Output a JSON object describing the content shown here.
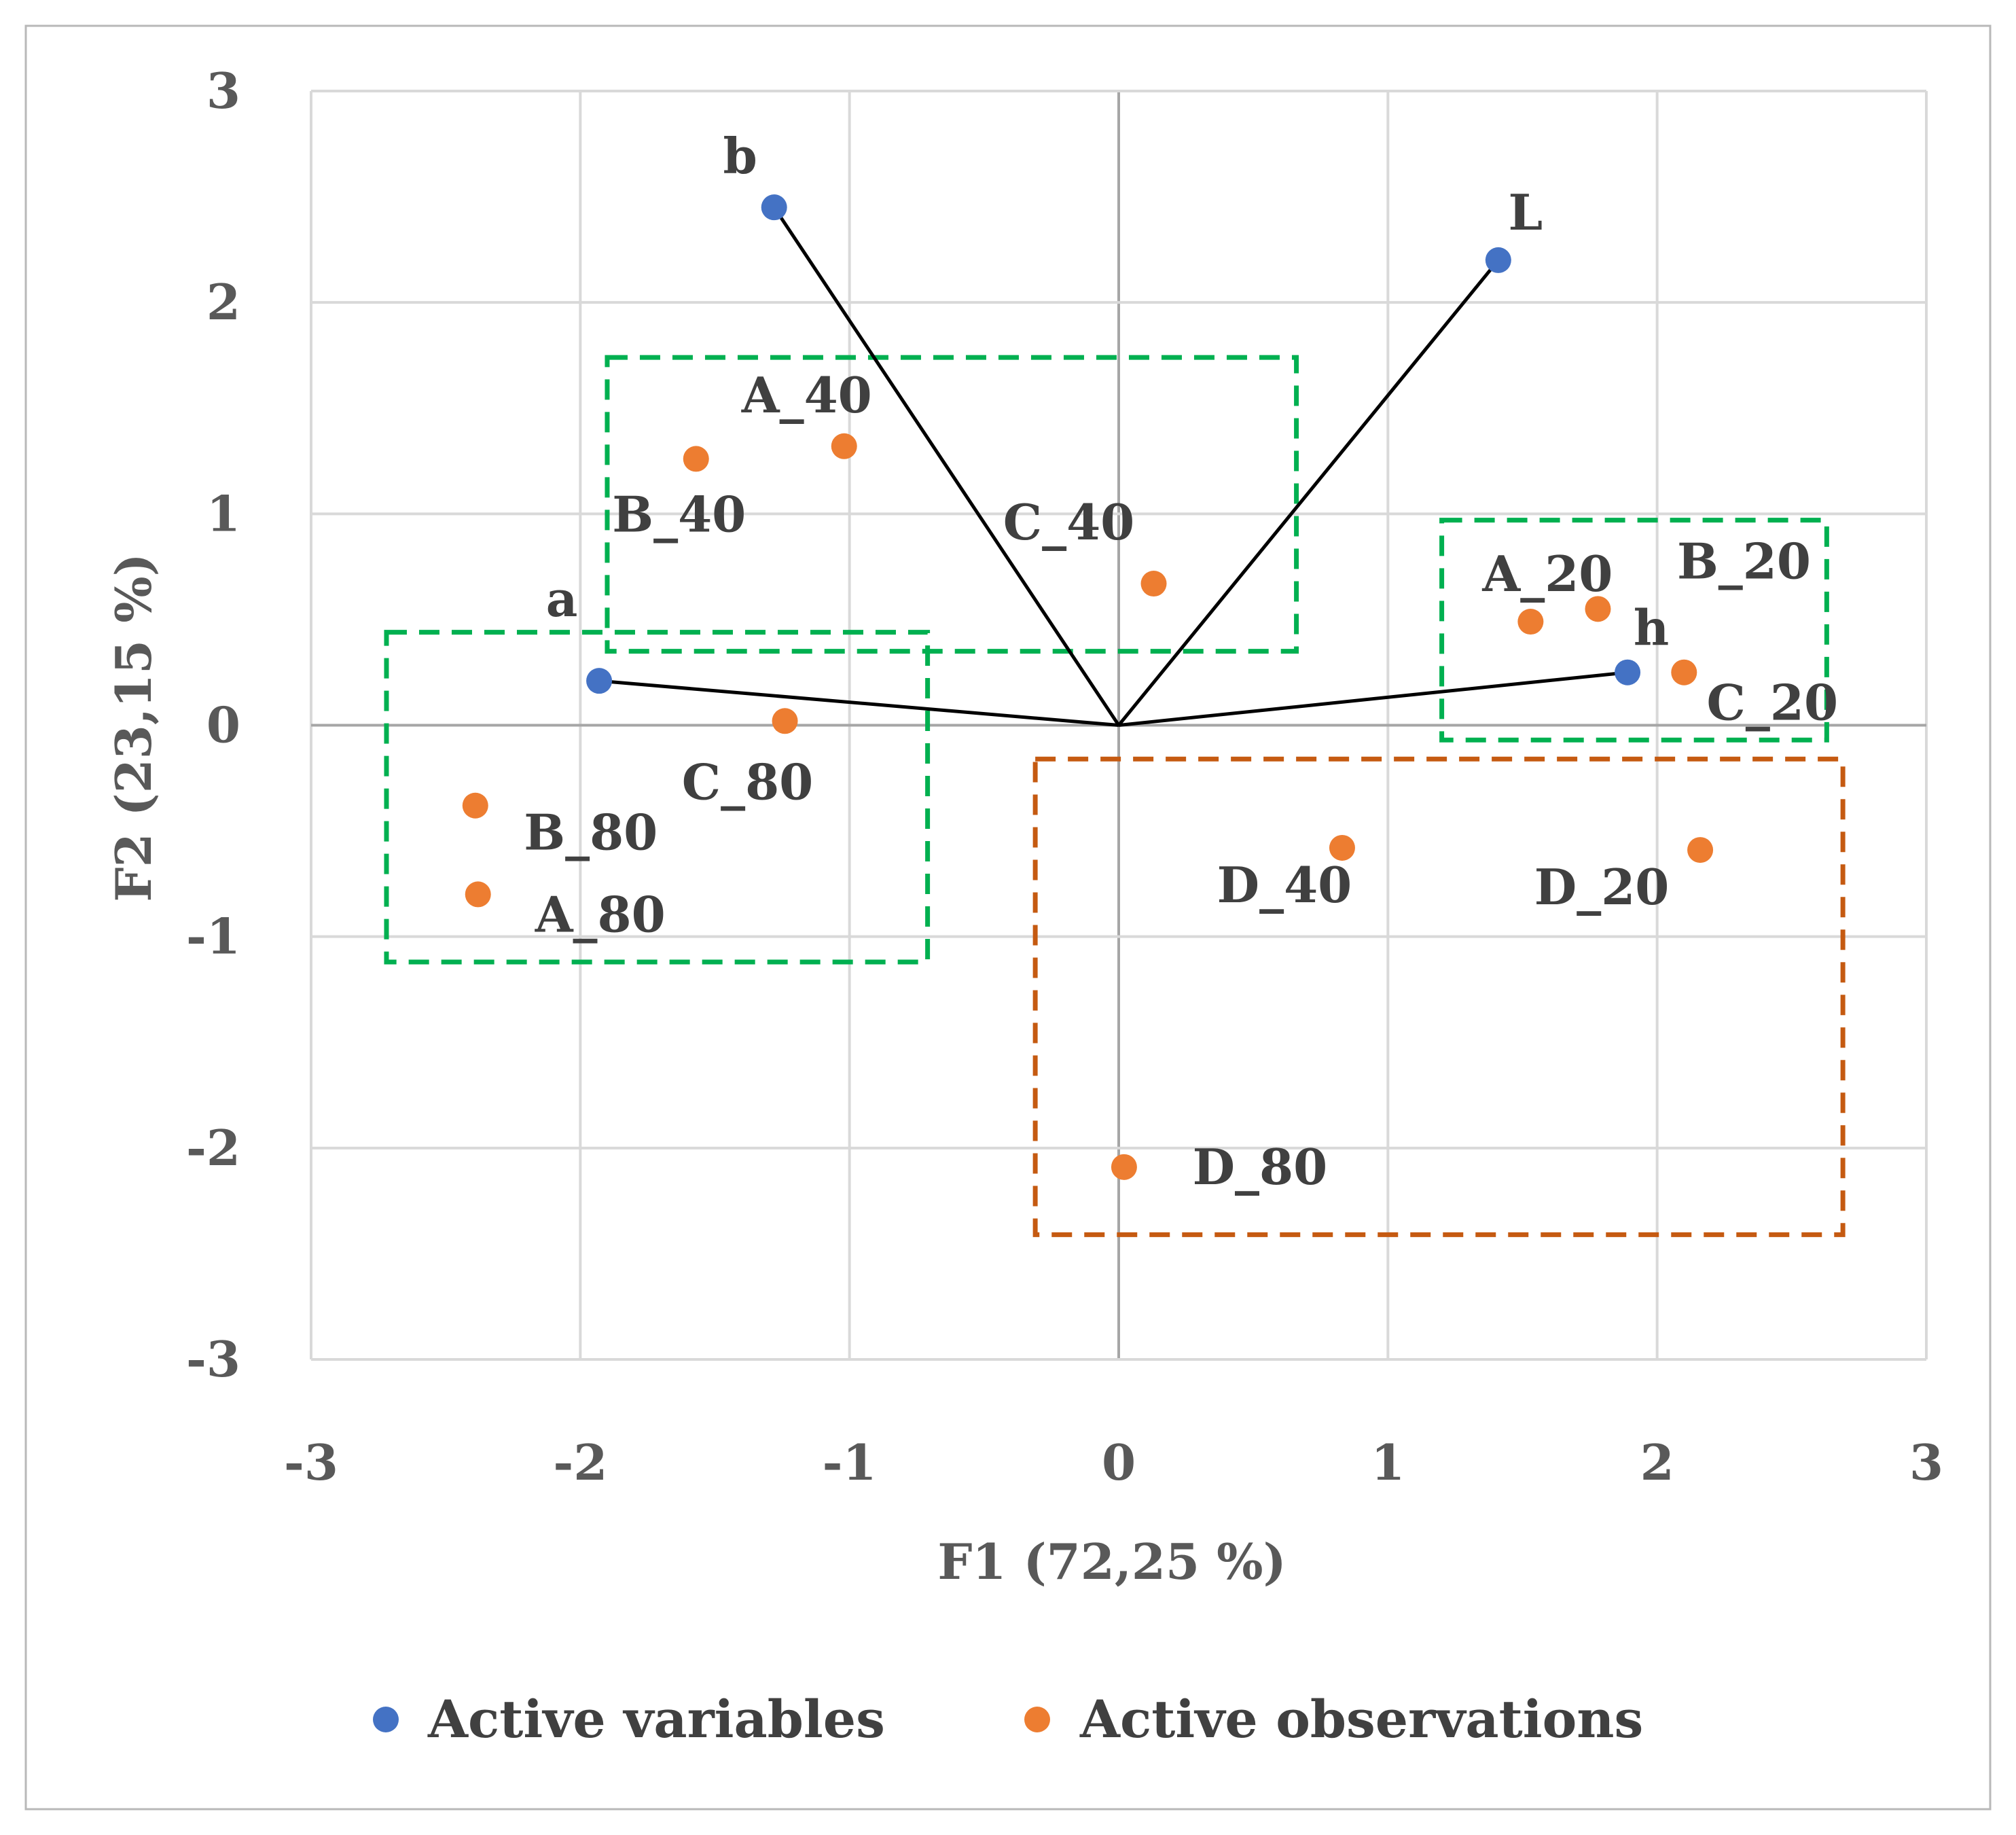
{
  "chart_data": {
    "type": "scatter",
    "subtype": "biplot",
    "xlabel": "F1 (72,25 %)",
    "ylabel": "F2 (23,15 %)",
    "xlim": [
      -3,
      3
    ],
    "ylim": [
      -3,
      3
    ],
    "x_ticks": [
      "-3",
      "-2",
      "-1",
      "0",
      "1",
      "2",
      "3"
    ],
    "y_ticks": [
      "3",
      "2",
      "1",
      "0",
      "-1",
      "-2",
      "-3"
    ],
    "grid": true,
    "legend_position": "bottom",
    "series": [
      {
        "name": "Active variables",
        "color": "#4472c4",
        "points": [
          {
            "label": "b",
            "x": -1.28,
            "y": 2.45
          },
          {
            "label": "L",
            "x": 1.41,
            "y": 2.2
          },
          {
            "label": "a",
            "x": -1.93,
            "y": 0.21
          },
          {
            "label": "h",
            "x": 1.89,
            "y": 0.25
          }
        ]
      },
      {
        "name": "Active observations",
        "color": "#ed7d31",
        "points": [
          {
            "label": "A_40",
            "x": -1.02,
            "y": 1.32
          },
          {
            "label": "B_40",
            "x": -1.57,
            "y": 1.26
          },
          {
            "label": "C_40",
            "x": 0.13,
            "y": 0.67
          },
          {
            "label": "A_20",
            "x": 1.53,
            "y": 0.49
          },
          {
            "label": "B_20",
            "x": 1.78,
            "y": 0.55
          },
          {
            "label": "C_20",
            "x": 2.1,
            "y": 0.25
          },
          {
            "label": "C_80",
            "x": -1.24,
            "y": 0.02
          },
          {
            "label": "B_80",
            "x": -2.39,
            "y": -0.38
          },
          {
            "label": "A_80",
            "x": -2.38,
            "y": -0.8
          },
          {
            "label": "D_40",
            "x": 0.83,
            "y": -0.58
          },
          {
            "label": "D_20",
            "x": 2.16,
            "y": -0.59
          },
          {
            "label": "D_80",
            "x": 0.02,
            "y": -2.09
          }
        ]
      }
    ],
    "vectors_from_origin": [
      "b",
      "L",
      "a",
      "h"
    ],
    "group_boxes": [
      {
        "members": [
          "A_40",
          "B_40",
          "C_40"
        ],
        "color": "#00b050"
      },
      {
        "members": [
          "A_20",
          "B_20",
          "C_20"
        ],
        "color": "#00b050"
      },
      {
        "members": [
          "A_80",
          "B_80",
          "C_80"
        ],
        "color": "#00b050"
      },
      {
        "members": [
          "D_20",
          "D_40",
          "D_80"
        ],
        "color": "#c55a11"
      }
    ]
  }
}
